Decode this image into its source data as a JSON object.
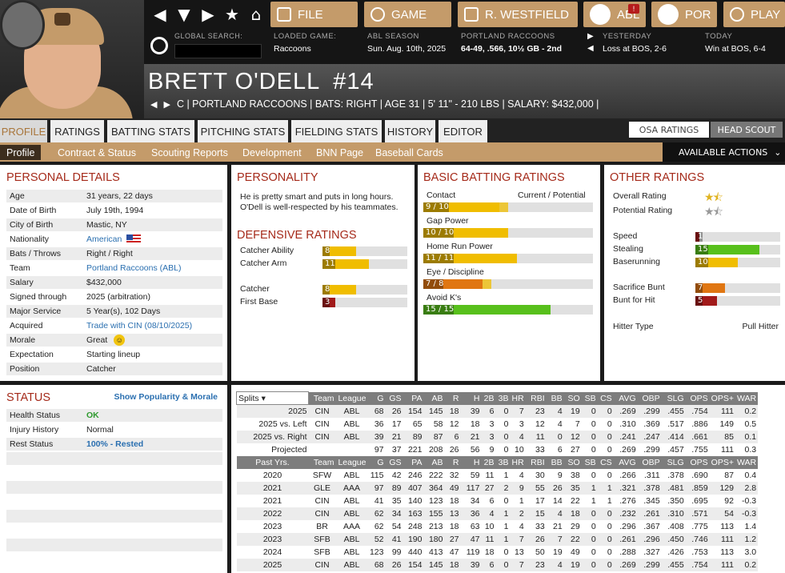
{
  "nav": {
    "file": "FILE",
    "game": "GAME",
    "manager": "R. WESTFIELD",
    "league": "ABL",
    "team": "POR",
    "play": "PLAY",
    "alert": "!"
  },
  "global_search": {
    "label": "GLOBAL SEARCH:",
    "value": ""
  },
  "header_info": {
    "loaded_game": {
      "label": "LOADED GAME:",
      "value": "Raccoons"
    },
    "season": {
      "label": "ABL SEASON",
      "value": "Sun. Aug. 10th, 2025"
    },
    "team": {
      "label": "PORTLAND RACCOONS",
      "value": "64-49, .566, 10½ GB - 2nd"
    },
    "yesterday": {
      "label": "YESTERDAY",
      "value": "Loss at BOS, 2-6"
    },
    "today": {
      "label": "TODAY",
      "value": "Win at BOS, 6-4"
    }
  },
  "player": {
    "name": "BRETT O'DELL",
    "number": "#14",
    "info": "C | PORTLAND RACCOONS | BATS: RIGHT | AGE 31 | 5' 11\" - 210 LBS | SALARY: $432,000 |"
  },
  "tabs": [
    "PROFILE",
    "RATINGS",
    "BATTING STATS",
    "PITCHING STATS",
    "FIELDING STATS",
    "HISTORY",
    "EDITOR"
  ],
  "toggles": [
    "OSA RATINGS",
    "HEAD SCOUT"
  ],
  "subtabs": [
    "Profile",
    "Contract & Status",
    "Scouting Reports",
    "Development",
    "BNN Page",
    "Baseball Cards"
  ],
  "available_actions": "AVAILABLE ACTIONS",
  "personal": {
    "title": "PERSONAL DETAILS",
    "rows": [
      {
        "k": "Age",
        "v": "31 years, 22 days"
      },
      {
        "k": "Date of Birth",
        "v": "July 19th, 1994"
      },
      {
        "k": "City of Birth",
        "v": "Mastic, NY"
      },
      {
        "k": "Nationality",
        "v": "American"
      },
      {
        "k": "Bats / Throws",
        "v": "Right / Right"
      },
      {
        "k": "Team",
        "v": "Portland Raccoons (ABL)"
      },
      {
        "k": "Salary",
        "v": "$432,000"
      },
      {
        "k": "Signed through",
        "v": "2025 (arbitration)"
      },
      {
        "k": "Major Service",
        "v": "5 Year(s), 102 Days"
      },
      {
        "k": "Acquired",
        "v": "Trade with CIN (08/10/2025)"
      },
      {
        "k": "Morale",
        "v": "Great"
      },
      {
        "k": "Expectation",
        "v": "Starting lineup"
      },
      {
        "k": "Position",
        "v": "Catcher"
      }
    ]
  },
  "personality": {
    "title": "PERSONALITY",
    "text": "He is pretty smart and puts in long hours. O'Dell is well-respected by his teammates."
  },
  "defensive": {
    "title": "DEFENSIVE RATINGS",
    "items": [
      {
        "label": "Catcher Ability",
        "value": "8"
      },
      {
        "label": "Catcher Arm",
        "value": "11"
      },
      {
        "label": "Catcher",
        "value": "8"
      },
      {
        "label": "First Base",
        "value": "3"
      }
    ]
  },
  "batting_ratings": {
    "title": "BASIC BATTING RATINGS",
    "header": "Current / Potential",
    "items": [
      {
        "label": "Contact",
        "value": "9 / 10"
      },
      {
        "label": "Gap Power",
        "value": "10 / 10"
      },
      {
        "label": "Home Run Power",
        "value": "11 / 11"
      },
      {
        "label": "Eye / Discipline",
        "value": "7 / 8"
      },
      {
        "label": "Avoid K's",
        "value": "15 / 15"
      }
    ]
  },
  "other": {
    "title": "OTHER RATINGS",
    "overall": "Overall Rating",
    "potential": "Potential Rating",
    "items": [
      {
        "label": "Speed",
        "value": "1"
      },
      {
        "label": "Stealing",
        "value": "15"
      },
      {
        "label": "Baserunning",
        "value": "10"
      },
      {
        "label": "Sacrifice Bunt",
        "value": "7"
      },
      {
        "label": "Bunt for Hit",
        "value": "5"
      }
    ],
    "hitter_type_label": "Hitter Type",
    "hitter_type": "Pull Hitter"
  },
  "status": {
    "title": "STATUS",
    "link": "Show Popularity & Morale",
    "rows": [
      {
        "k": "Health Status",
        "v": "OK"
      },
      {
        "k": "Injury History",
        "v": "Normal"
      },
      {
        "k": "Rest Status",
        "v": "100% - Rested"
      }
    ]
  },
  "stats": {
    "splits_select": "Splits",
    "cols": [
      "Team",
      "League",
      "G",
      "GS",
      "PA",
      "AB",
      "R",
      "H",
      "2B",
      "3B",
      "HR",
      "RBI",
      "BB",
      "SO",
      "SB",
      "CS",
      "AVG",
      "OBP",
      "SLG",
      "OPS",
      "OPS+",
      "WAR"
    ],
    "split_rows": [
      [
        "2025",
        "CIN",
        "ABL",
        "68",
        "26",
        "154",
        "145",
        "18",
        "39",
        "6",
        "0",
        "7",
        "23",
        "4",
        "19",
        "0",
        "0",
        ".269",
        ".299",
        ".455",
        ".754",
        "111",
        "0.2"
      ],
      [
        "2025 vs. Left",
        "CIN",
        "ABL",
        "36",
        "17",
        "65",
        "58",
        "12",
        "18",
        "3",
        "0",
        "3",
        "12",
        "4",
        "7",
        "0",
        "0",
        ".310",
        ".369",
        ".517",
        ".886",
        "149",
        "0.5"
      ],
      [
        "2025 vs. Right",
        "CIN",
        "ABL",
        "39",
        "21",
        "89",
        "87",
        "6",
        "21",
        "3",
        "0",
        "4",
        "11",
        "0",
        "12",
        "0",
        "0",
        ".241",
        ".247",
        ".414",
        ".661",
        "85",
        "0.1"
      ],
      [
        "Projected",
        "",
        "",
        "97",
        "37",
        "221",
        "208",
        "26",
        "56",
        "9",
        "0",
        "10",
        "33",
        "6",
        "27",
        "0",
        "0",
        ".269",
        ".299",
        ".457",
        ".755",
        "111",
        "0.3"
      ]
    ],
    "past_header": "Past Yrs.",
    "past_rows": [
      [
        "2020",
        "SFW",
        "ABL",
        "115",
        "42",
        "246",
        "222",
        "32",
        "59",
        "11",
        "1",
        "4",
        "30",
        "9",
        "38",
        "0",
        "0",
        ".266",
        ".311",
        ".378",
        ".690",
        "87",
        "0.4"
      ],
      [
        "2021",
        "GLE",
        "AAA",
        "97",
        "89",
        "407",
        "364",
        "49",
        "117",
        "27",
        "2",
        "9",
        "55",
        "26",
        "35",
        "1",
        "1",
        ".321",
        ".378",
        ".481",
        ".859",
        "129",
        "2.8"
      ],
      [
        "2021",
        "CIN",
        "ABL",
        "41",
        "35",
        "140",
        "123",
        "18",
        "34",
        "6",
        "0",
        "1",
        "17",
        "14",
        "22",
        "1",
        "1",
        ".276",
        ".345",
        ".350",
        ".695",
        "92",
        "-0.3"
      ],
      [
        "2022",
        "CIN",
        "ABL",
        "62",
        "34",
        "163",
        "155",
        "13",
        "36",
        "4",
        "1",
        "2",
        "15",
        "4",
        "18",
        "0",
        "0",
        ".232",
        ".261",
        ".310",
        ".571",
        "54",
        "-0.3"
      ],
      [
        "2023",
        "BR",
        "AAA",
        "62",
        "54",
        "248",
        "213",
        "18",
        "63",
        "10",
        "1",
        "4",
        "33",
        "21",
        "29",
        "0",
        "0",
        ".296",
        ".367",
        ".408",
        ".775",
        "113",
        "1.4"
      ],
      [
        "2023",
        "SFB",
        "ABL",
        "52",
        "41",
        "190",
        "180",
        "27",
        "47",
        "11",
        "1",
        "7",
        "26",
        "7",
        "22",
        "0",
        "0",
        ".261",
        ".296",
        ".450",
        ".746",
        "111",
        "1.2"
      ],
      [
        "2024",
        "SFB",
        "ABL",
        "123",
        "99",
        "440",
        "413",
        "47",
        "119",
        "18",
        "0",
        "13",
        "50",
        "19",
        "49",
        "0",
        "0",
        ".288",
        ".327",
        ".426",
        ".753",
        "113",
        "3.0"
      ],
      [
        "2025",
        "CIN",
        "ABL",
        "68",
        "26",
        "154",
        "145",
        "18",
        "39",
        "6",
        "0",
        "7",
        "23",
        "4",
        "19",
        "0",
        "0",
        ".269",
        ".299",
        ".455",
        ".754",
        "111",
        "0.2"
      ]
    ]
  }
}
